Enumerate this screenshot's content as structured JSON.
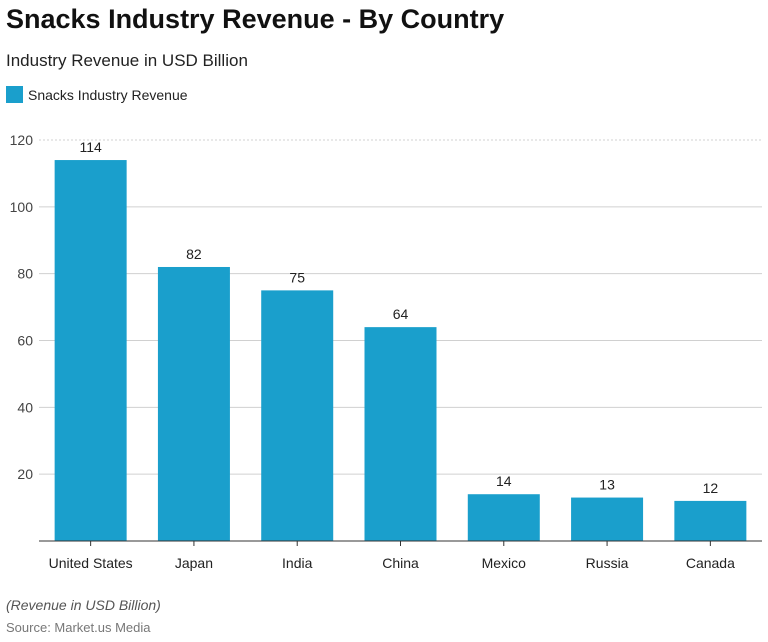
{
  "chart_data": {
    "type": "bar",
    "title": "Snacks Industry Revenue - By Country",
    "subtitle": "Industry Revenue in USD Billion",
    "categories": [
      "United States",
      "Japan",
      "India",
      "China",
      "Mexico",
      "Russia",
      "Canada"
    ],
    "series": [
      {
        "name": "Snacks Industry Revenue",
        "values": [
          114,
          82,
          75,
          64,
          14,
          13,
          12
        ]
      }
    ],
    "ylim": [
      0,
      120
    ],
    "yticks": [
      20,
      40,
      60,
      80,
      100,
      120
    ],
    "grid": true,
    "legend": "top-left",
    "color": "#1a9fcc",
    "note": "(Revenue in USD Billion)",
    "source": "Source: Market.us Media"
  }
}
